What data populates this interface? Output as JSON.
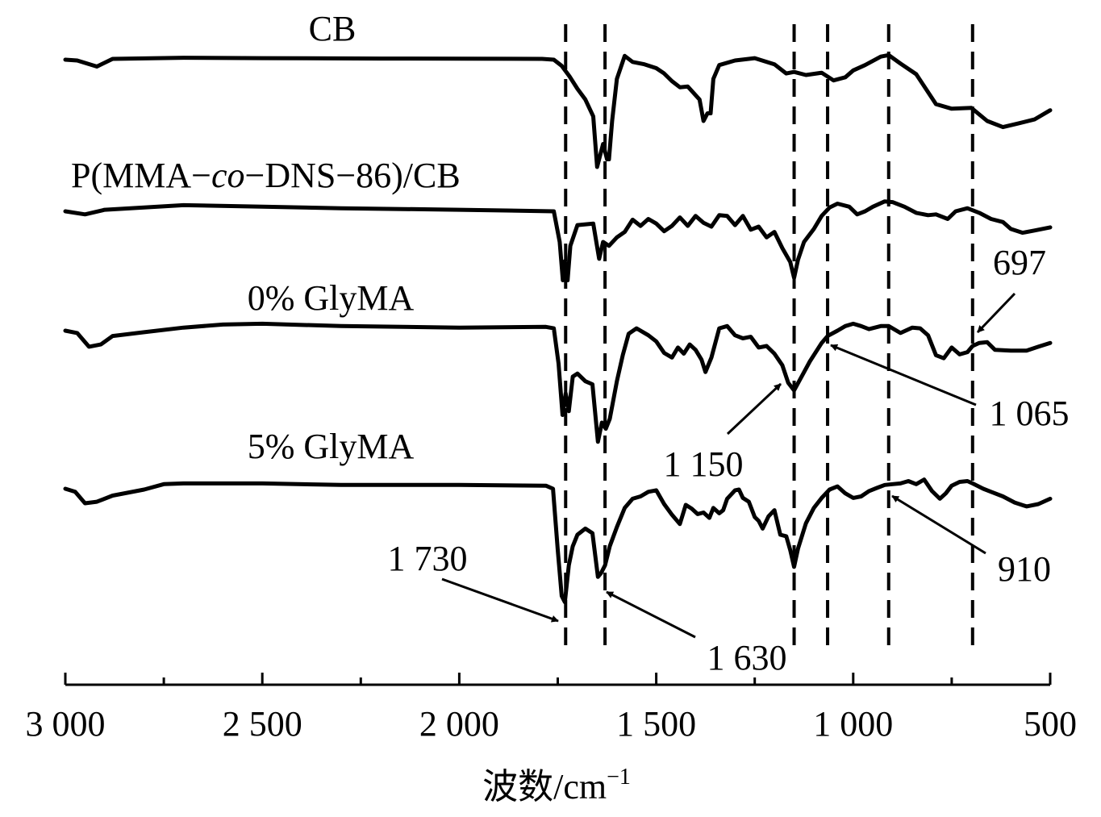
{
  "chart_data": {
    "type": "line",
    "xlabel": "波数/cm⁻¹",
    "xlabel_main": "波数/cm",
    "xlabel_sup": "−1",
    "xlim": [
      3000,
      500
    ],
    "x_reversed": true,
    "y_axis_visible": false,
    "x_ticks": [
      3000,
      2500,
      2000,
      1500,
      1000,
      500
    ],
    "x_tick_labels": [
      "3 000",
      "2 500",
      "2 000",
      "1 500",
      "1 000",
      "500"
    ],
    "minor_ticks": [
      2750,
      2250,
      1750,
      1250,
      750
    ],
    "dashed_reference_lines": [
      1730,
      1630,
      1150,
      1065,
      910,
      697
    ],
    "series": [
      {
        "name": "CB",
        "points": [
          [
            3000,
            0
          ],
          [
            2970,
            -0.1
          ],
          [
            2920,
            -0.9
          ],
          [
            2880,
            0.1
          ],
          [
            2700,
            0.25
          ],
          [
            2500,
            0.2
          ],
          [
            2200,
            0.15
          ],
          [
            1790,
            0.1
          ],
          [
            1760,
            0.0
          ],
          [
            1740,
            -0.8
          ],
          [
            1720,
            -2.2
          ],
          [
            1700,
            -3.8
          ],
          [
            1680,
            -5.2
          ],
          [
            1660,
            -7.4
          ],
          [
            1650,
            -14
          ],
          [
            1635,
            -11
          ],
          [
            1625,
            -13
          ],
          [
            1620,
            -13
          ],
          [
            1612,
            -8
          ],
          [
            1600,
            -2.5
          ],
          [
            1580,
            0.5
          ],
          [
            1560,
            -0.3
          ],
          [
            1530,
            -0.6
          ],
          [
            1500,
            -1.1
          ],
          [
            1480,
            -1.8
          ],
          [
            1460,
            -2.8
          ],
          [
            1440,
            -3.6
          ],
          [
            1420,
            -3.5
          ],
          [
            1390,
            -5.2
          ],
          [
            1380,
            -8
          ],
          [
            1370,
            -7
          ],
          [
            1362,
            -7
          ],
          [
            1355,
            -2.5
          ],
          [
            1340,
            -0.7
          ],
          [
            1300,
            -0.1
          ],
          [
            1250,
            0.2
          ],
          [
            1200,
            -0.6
          ],
          [
            1170,
            -1.8
          ],
          [
            1150,
            -1.6
          ],
          [
            1120,
            -2.0
          ],
          [
            1080,
            -1.7
          ],
          [
            1050,
            -2.7
          ],
          [
            1020,
            -2.3
          ],
          [
            1000,
            -1.4
          ],
          [
            970,
            -0.7
          ],
          [
            930,
            0.4
          ],
          [
            910,
            0.6
          ],
          [
            880,
            -0.5
          ],
          [
            840,
            -1.9
          ],
          [
            790,
            -5.8
          ],
          [
            750,
            -6.4
          ],
          [
            700,
            -6.3
          ],
          [
            660,
            -8
          ],
          [
            620,
            -8.8
          ],
          [
            580,
            -8.3
          ],
          [
            540,
            -7.8
          ],
          [
            500,
            -6.6
          ]
        ]
      },
      {
        "name": "P(MMA-co-DNS-86)/CB",
        "points": [
          [
            3000,
            0
          ],
          [
            2950,
            -0.4
          ],
          [
            2900,
            0.2
          ],
          [
            2700,
            0.8
          ],
          [
            2500,
            0.6
          ],
          [
            2300,
            0.4
          ],
          [
            2000,
            0.2
          ],
          [
            1760,
            0
          ],
          [
            1745,
            -4.0
          ],
          [
            1737,
            -9
          ],
          [
            1732,
            -6.5
          ],
          [
            1725,
            -9
          ],
          [
            1718,
            -4.5
          ],
          [
            1700,
            -1.8
          ],
          [
            1660,
            -1.6
          ],
          [
            1645,
            -6.2
          ],
          [
            1635,
            -4.0
          ],
          [
            1620,
            -4.5
          ],
          [
            1600,
            -3.4
          ],
          [
            1580,
            -2.7
          ],
          [
            1560,
            -1.1
          ],
          [
            1540,
            -1.9
          ],
          [
            1520,
            -1.0
          ],
          [
            1500,
            -1.6
          ],
          [
            1480,
            -2.6
          ],
          [
            1460,
            -1.9
          ],
          [
            1440,
            -0.8
          ],
          [
            1420,
            -1.9
          ],
          [
            1400,
            -0.6
          ],
          [
            1380,
            -1.5
          ],
          [
            1360,
            -2.0
          ],
          [
            1340,
            -0.5
          ],
          [
            1320,
            -0.6
          ],
          [
            1300,
            -1.8
          ],
          [
            1280,
            -0.6
          ],
          [
            1260,
            -2.4
          ],
          [
            1240,
            -2.0
          ],
          [
            1220,
            -3.4
          ],
          [
            1200,
            -2.7
          ],
          [
            1180,
            -4.8
          ],
          [
            1160,
            -6.6
          ],
          [
            1150,
            -8.7
          ],
          [
            1140,
            -6.3
          ],
          [
            1125,
            -4.0
          ],
          [
            1100,
            -2.3
          ],
          [
            1080,
            -0.6
          ],
          [
            1060,
            0.5
          ],
          [
            1040,
            1.0
          ],
          [
            1010,
            0.6
          ],
          [
            990,
            -0.4
          ],
          [
            970,
            0.0
          ],
          [
            950,
            0.6
          ],
          [
            920,
            1.3
          ],
          [
            900,
            1.2
          ],
          [
            870,
            0.6
          ],
          [
            840,
            -0.2
          ],
          [
            810,
            -0.5
          ],
          [
            790,
            -0.4
          ],
          [
            760,
            -1.0
          ],
          [
            740,
            0.0
          ],
          [
            710,
            0.4
          ],
          [
            680,
            -0.2
          ],
          [
            650,
            -1.0
          ],
          [
            620,
            -1.4
          ],
          [
            600,
            -2.3
          ],
          [
            570,
            -2.8
          ],
          [
            540,
            -2.5
          ],
          [
            500,
            -2.1
          ]
        ]
      },
      {
        "name": "0% GlyMA",
        "points": [
          [
            3000,
            0
          ],
          [
            2970,
            -0.3
          ],
          [
            2940,
            -2.1
          ],
          [
            2910,
            -1.8
          ],
          [
            2880,
            -0.7
          ],
          [
            2800,
            -0.2
          ],
          [
            2700,
            0.4
          ],
          [
            2600,
            0.8
          ],
          [
            2500,
            0.9
          ],
          [
            2300,
            0.6
          ],
          [
            2000,
            0.4
          ],
          [
            1780,
            0.5
          ],
          [
            1760,
            0.3
          ],
          [
            1748,
            -4.3
          ],
          [
            1738,
            -11.0
          ],
          [
            1730,
            -8.2
          ],
          [
            1722,
            -10.5
          ],
          [
            1712,
            -6.0
          ],
          [
            1700,
            -5.6
          ],
          [
            1680,
            -6.6
          ],
          [
            1662,
            -7.0
          ],
          [
            1648,
            -14.5
          ],
          [
            1638,
            -12.0
          ],
          [
            1628,
            -12.8
          ],
          [
            1618,
            -11.5
          ],
          [
            1600,
            -6.6
          ],
          [
            1585,
            -3.2
          ],
          [
            1570,
            -0.4
          ],
          [
            1550,
            0.3
          ],
          [
            1520,
            -0.6
          ],
          [
            1500,
            -1.4
          ],
          [
            1480,
            -2.9
          ],
          [
            1460,
            -3.5
          ],
          [
            1445,
            -2.2
          ],
          [
            1430,
            -3.0
          ],
          [
            1415,
            -1.8
          ],
          [
            1400,
            -2.5
          ],
          [
            1385,
            -3.8
          ],
          [
            1375,
            -5.4
          ],
          [
            1360,
            -3.5
          ],
          [
            1340,
            0.3
          ],
          [
            1320,
            0.6
          ],
          [
            1300,
            -0.6
          ],
          [
            1280,
            -1.0
          ],
          [
            1260,
            -0.8
          ],
          [
            1240,
            -2.2
          ],
          [
            1220,
            -2.0
          ],
          [
            1200,
            -3.0
          ],
          [
            1180,
            -4.5
          ],
          [
            1165,
            -6.8
          ],
          [
            1150,
            -7.8
          ],
          [
            1130,
            -5.9
          ],
          [
            1110,
            -4.0
          ],
          [
            1080,
            -1.6
          ],
          [
            1065,
            -0.7
          ],
          [
            1040,
            0.0
          ],
          [
            1020,
            0.6
          ],
          [
            1000,
            0.9
          ],
          [
            980,
            0.6
          ],
          [
            960,
            0.2
          ],
          [
            930,
            0.6
          ],
          [
            910,
            0.6
          ],
          [
            880,
            -0.3
          ],
          [
            850,
            0.4
          ],
          [
            830,
            0.3
          ],
          [
            810,
            -0.6
          ],
          [
            790,
            -3.2
          ],
          [
            770,
            -3.6
          ],
          [
            750,
            -2.2
          ],
          [
            730,
            -3.1
          ],
          [
            710,
            -2.8
          ],
          [
            697,
            -2.0
          ],
          [
            680,
            -1.6
          ],
          [
            660,
            -1.5
          ],
          [
            640,
            -2.5
          ],
          [
            600,
            -2.6
          ],
          [
            560,
            -2.6
          ],
          [
            530,
            -2.1
          ],
          [
            500,
            -1.6
          ]
        ]
      },
      {
        "name": "5% GlyMA",
        "points": [
          [
            3000,
            0
          ],
          [
            2975,
            -0.4
          ],
          [
            2950,
            -1.9
          ],
          [
            2920,
            -1.7
          ],
          [
            2880,
            -0.9
          ],
          [
            2800,
            -0.1
          ],
          [
            2750,
            0.6
          ],
          [
            2700,
            0.7
          ],
          [
            2500,
            0.7
          ],
          [
            2300,
            0.5
          ],
          [
            2000,
            0.5
          ],
          [
            1780,
            0.4
          ],
          [
            1762,
            0.0
          ],
          [
            1750,
            -8.0
          ],
          [
            1740,
            -14.0
          ],
          [
            1732,
            -14.8
          ],
          [
            1722,
            -10.0
          ],
          [
            1712,
            -7.5
          ],
          [
            1700,
            -6.0
          ],
          [
            1680,
            -5.2
          ],
          [
            1662,
            -5.8
          ],
          [
            1648,
            -11.5
          ],
          [
            1640,
            -11.0
          ],
          [
            1630,
            -10.0
          ],
          [
            1618,
            -7.5
          ],
          [
            1600,
            -5.0
          ],
          [
            1580,
            -2.5
          ],
          [
            1560,
            -1.3
          ],
          [
            1540,
            -1.0
          ],
          [
            1520,
            -0.4
          ],
          [
            1500,
            -0.2
          ],
          [
            1480,
            -2.0
          ],
          [
            1460,
            -3.4
          ],
          [
            1440,
            -4.6
          ],
          [
            1425,
            -2.1
          ],
          [
            1410,
            -2.6
          ],
          [
            1395,
            -3.3
          ],
          [
            1380,
            -3.1
          ],
          [
            1365,
            -3.8
          ],
          [
            1355,
            -2.5
          ],
          [
            1340,
            -3.2
          ],
          [
            1330,
            -2.8
          ],
          [
            1320,
            -1.3
          ],
          [
            1300,
            -0.2
          ],
          [
            1290,
            -0.1
          ],
          [
            1280,
            -1.2
          ],
          [
            1265,
            -1.7
          ],
          [
            1250,
            -3.7
          ],
          [
            1240,
            -4.2
          ],
          [
            1230,
            -5.2
          ],
          [
            1215,
            -3.6
          ],
          [
            1200,
            -2.8
          ],
          [
            1185,
            -6.0
          ],
          [
            1170,
            -6.2
          ],
          [
            1160,
            -8.0
          ],
          [
            1150,
            -10.2
          ],
          [
            1140,
            -7.8
          ],
          [
            1120,
            -4.5
          ],
          [
            1100,
            -2.5
          ],
          [
            1080,
            -1.2
          ],
          [
            1060,
            -0.1
          ],
          [
            1040,
            0.3
          ],
          [
            1020,
            -0.6
          ],
          [
            1000,
            -1.2
          ],
          [
            980,
            -1.0
          ],
          [
            960,
            -0.3
          ],
          [
            940,
            0.1
          ],
          [
            920,
            0.5
          ],
          [
            900,
            0.6
          ],
          [
            880,
            0.7
          ],
          [
            860,
            1.0
          ],
          [
            840,
            0.6
          ],
          [
            820,
            1.2
          ],
          [
            800,
            -0.3
          ],
          [
            780,
            -1.3
          ],
          [
            765,
            -0.6
          ],
          [
            750,
            0.4
          ],
          [
            730,
            0.9
          ],
          [
            710,
            1.0
          ],
          [
            697,
            0.7
          ],
          [
            670,
            0.0
          ],
          [
            650,
            -0.4
          ],
          [
            620,
            -1.0
          ],
          [
            590,
            -1.8
          ],
          [
            560,
            -2.3
          ],
          [
            530,
            -2.0
          ],
          [
            500,
            -1.3
          ]
        ]
      }
    ],
    "series_labels": [
      "CB",
      "P(MMA−co−DNS−86)/CB",
      "0% GlyMA",
      "5% GlyMA"
    ],
    "annotations": [
      {
        "text": "1 730",
        "target_x": 1730,
        "series": 3
      },
      {
        "text": "1 630",
        "target_x": 1630,
        "series": 3
      },
      {
        "text": "1 150",
        "target_x": 1150,
        "series": 2
      },
      {
        "text": "1 065",
        "target_x": 1065,
        "series": 2
      },
      {
        "text": "910",
        "target_x": 910,
        "series": 3
      },
      {
        "text": "697",
        "target_x": 697,
        "series": 2
      }
    ]
  }
}
